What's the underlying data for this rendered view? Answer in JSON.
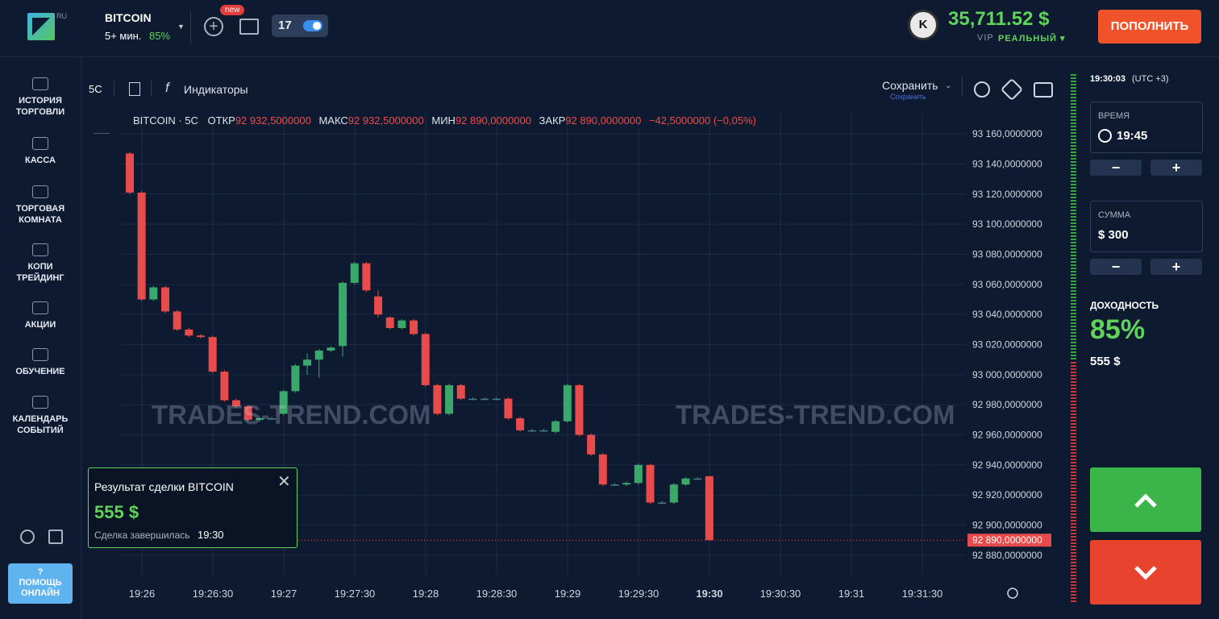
{
  "header": {
    "logo_badge": "RU",
    "asset": "BITCOIN",
    "expiry": "5+ мин.",
    "payout": "85%",
    "new_badge": "new",
    "avatar": "K",
    "balance": "35,711.52 $",
    "account_tier": "VIP",
    "account_type": "РЕАЛЬНЫЙ ▾",
    "deposit_button": "ПОПОЛНИТЬ"
  },
  "sidebar": {
    "items": [
      "ИСТОРИЯ\nТОРГОВЛИ",
      "КАССА",
      "ТОРГОВАЯ\nКОМНАТА",
      "КОПИ\nТРЕЙДИНГ",
      "АКЦИИ",
      "ОБУЧЕНИЕ",
      "КАЛЕНДАРЬ\nСОБЫТИЙ"
    ],
    "help_icon": "?",
    "help": "ПОМОЩЬ\nОНЛАЙН"
  },
  "toolbar": {
    "interval": "5С",
    "indicators": "Индикаторы",
    "save": "Сохранить",
    "save_sub": "Сохранить"
  },
  "legend": {
    "symbol": "BITCOIN · 5С",
    "open_label": "ОТКР",
    "open": "92 932,5000000",
    "high_label": "МАКС",
    "high": "92 932,5000000",
    "low_label": "МИН",
    "low": "92 890,0000000",
    "close_label": "ЗАКР",
    "close": "92 890,0000000",
    "change": "−42,5000000 (−0,05%)"
  },
  "watermark": [
    "TRADES-TREND.COM",
    "TRADES-TREND.COM"
  ],
  "chart": {
    "ylim": [
      92866,
      93174
    ],
    "yticks": [
      {
        "value": 93160,
        "label": "93 160,0000000"
      },
      {
        "value": 93140,
        "label": "93 140,0000000"
      },
      {
        "value": 93120,
        "label": "93 120,0000000"
      },
      {
        "value": 93100,
        "label": "93 100,0000000"
      },
      {
        "value": 93080,
        "label": "93 080,0000000"
      },
      {
        "value": 93060,
        "label": "93 060,0000000"
      },
      {
        "value": 93040,
        "label": "93 040,0000000"
      },
      {
        "value": 93020,
        "label": "93 020,0000000"
      },
      {
        "value": 93000,
        "label": "93 000,0000000"
      },
      {
        "value": 92980,
        "label": "92 980,0000000"
      },
      {
        "value": 92960,
        "label": "92 960,0000000"
      },
      {
        "value": 92940,
        "label": "92 940,0000000"
      },
      {
        "value": 92920,
        "label": "92 920,0000000"
      },
      {
        "value": 92900,
        "label": "92 900,0000000"
      },
      {
        "value": 92880,
        "label": "92 880,0000000"
      }
    ],
    "current_price": {
      "value": 92890,
      "label": "92 890,0000000"
    },
    "x_labels": [
      "19:26",
      "19:26:30",
      "19:27",
      "19:27:30",
      "19:28",
      "19:28:30",
      "19:29",
      "19:29:30",
      "19:30",
      "19:30:30",
      "19:31",
      "19:31:30"
    ],
    "open": [
      93147,
      93121,
      93050,
      93058,
      93042,
      93030,
      93026,
      93025,
      93002,
      92983,
      92979,
      92970,
      92971,
      92974,
      92989,
      93006,
      93010,
      93016,
      93019,
      93061,
      93074,
      93052,
      93038,
      93031,
      93036,
      93027,
      92993,
      92974,
      92993,
      92984,
      92984,
      92984,
      92984,
      92971,
      92963,
      92963,
      92962,
      92969,
      92993,
      92960,
      92947,
      92927,
      92927,
      92928,
      92940,
      92915,
      92915,
      92927,
      92931,
      92932.5
    ],
    "high": [
      93148,
      93122,
      93059,
      93059,
      93043,
      93031,
      93027,
      93026,
      93003,
      92984,
      92980,
      92972,
      92972,
      92990,
      93007,
      93014,
      93017,
      93019,
      93062,
      93075,
      93075,
      93056,
      93039,
      93037,
      93037,
      93028,
      92994,
      92994,
      92994,
      92985,
      92985,
      92985,
      92985,
      92972,
      92964,
      92964,
      92970,
      92994,
      92994,
      92961,
      92948,
      92928,
      92929,
      92941,
      92941,
      92916,
      92928,
      92932,
      92932,
      92932.5
    ],
    "low": [
      93120,
      93049,
      93049,
      93041,
      93029,
      93025,
      93024,
      93001,
      92982,
      92978,
      92969,
      92969,
      92970,
      92973,
      92988,
      93000,
      92998,
      93015,
      93012,
      93060,
      93055,
      93038,
      93030,
      93030,
      93026,
      92992,
      92973,
      92973,
      92983,
      92983,
      92983,
      92983,
      92970,
      92962,
      92962,
      92962,
      92961,
      92968,
      92959,
      92946,
      92926,
      92926,
      92926,
      92927,
      92914,
      92914,
      92914,
      92926,
      92930,
      92890
    ],
    "close": [
      93121,
      93050,
      93058,
      93042,
      93030,
      93026,
      93025,
      93002,
      92983,
      92979,
      92970,
      92971,
      92971,
      92989,
      93006,
      93010,
      93016,
      93018,
      93061,
      93074,
      93056,
      93040,
      93031,
      93036,
      93027,
      92993,
      92974,
      92993,
      92984,
      92984,
      92984,
      92984,
      92971,
      92963,
      92963,
      92963,
      92969,
      92993,
      92960,
      92947,
      92927,
      92927,
      92928,
      92940,
      92915,
      92915,
      92927,
      92931,
      92931,
      92890
    ]
  },
  "popup": {
    "title": "Результат сделки BITCOIN",
    "amount": "555 $",
    "status": "Сделка завершилась",
    "time": "19:30"
  },
  "panel": {
    "clock": "19:30:03",
    "timezone": "(UTC +3)",
    "time_label": "ВРЕМЯ",
    "time_value": "19:45",
    "minus": "−",
    "plus": "+",
    "amount_label": "СУММА",
    "amount_value": "$ 300",
    "payout_label": "ДОХОДНОСТЬ",
    "payout_value": "85%",
    "profit": "555 $"
  }
}
